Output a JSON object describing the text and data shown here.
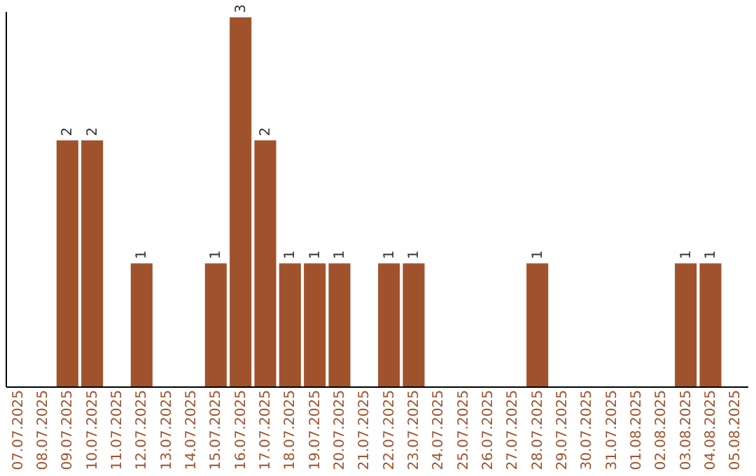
{
  "chart_data": {
    "type": "bar",
    "categories": [
      "07.07.2025",
      "08.07.2025",
      "09.07.2025",
      "10.07.2025",
      "11.07.2025",
      "12.07.2025",
      "13.07.2025",
      "14.07.2025",
      "15.07.2025",
      "16.07.2025",
      "17.07.2025",
      "18.07.2025",
      "19.07.2025",
      "20.07.2025",
      "21.07.2025",
      "22.07.2025",
      "23.07.2025",
      "24.07.2025",
      "25.07.2025",
      "26.07.2025",
      "27.07.2025",
      "28.07.2025",
      "29.07.2025",
      "30.07.2025",
      "31.07.2025",
      "01.08.2025",
      "02.08.2025",
      "03.08.2025",
      "04.08.2025",
      "05.08.2025"
    ],
    "values": [
      0,
      0,
      2,
      2,
      0,
      1,
      0,
      0,
      1,
      3,
      2,
      1,
      1,
      1,
      0,
      1,
      1,
      0,
      0,
      0,
      0,
      1,
      0,
      0,
      0,
      0,
      0,
      1,
      1,
      0
    ],
    "value_labels": [
      null,
      null,
      "2",
      "2",
      null,
      "1",
      null,
      null,
      "1",
      "3",
      "2",
      "1",
      "1",
      "1",
      null,
      "1",
      "1",
      null,
      null,
      null,
      null,
      "1",
      null,
      null,
      null,
      null,
      null,
      "1",
      "1",
      null
    ],
    "color": "#a0522d",
    "ylim": [
      0,
      3.05
    ],
    "tick_labels": "x",
    "grid": false
  }
}
